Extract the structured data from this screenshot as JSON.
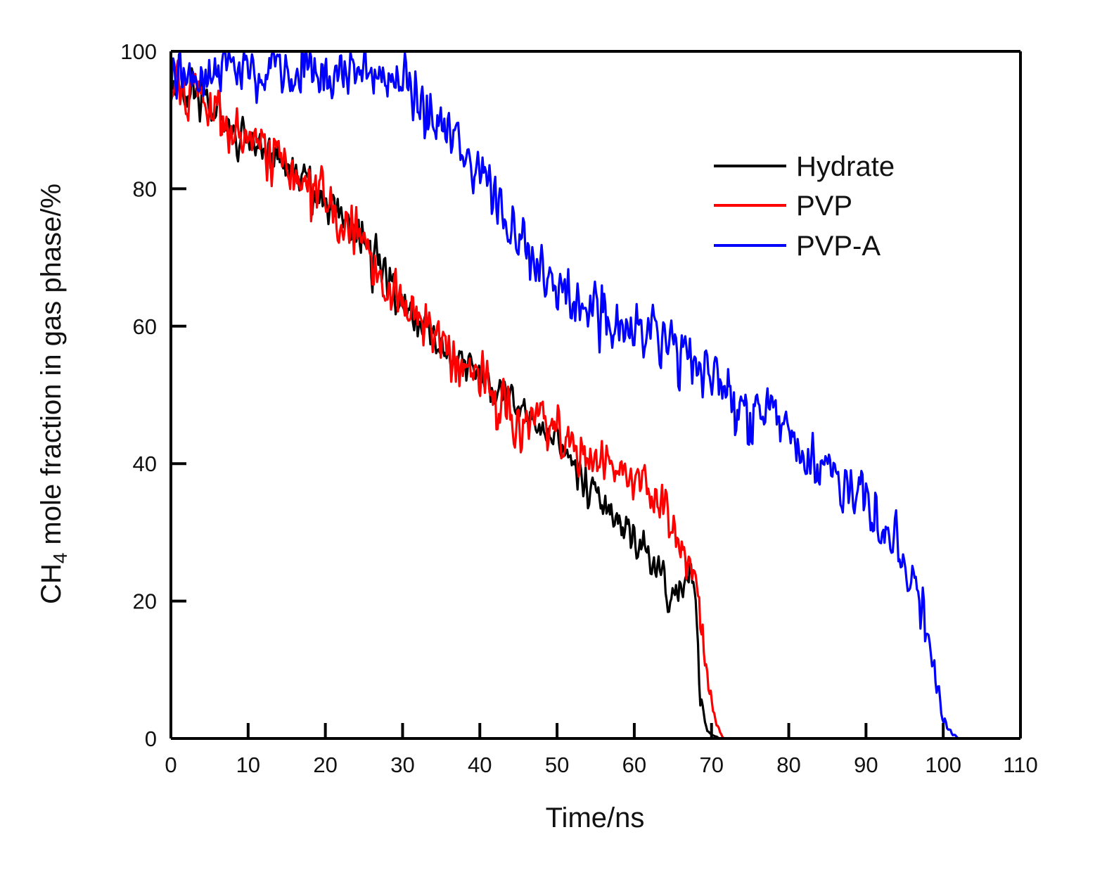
{
  "chart_data": {
    "type": "line",
    "xlabel": "Time/ns",
    "ylabel_parts": {
      "prefix": "CH",
      "subscript": "4",
      "suffix": " mole fraction in gas phase/%"
    },
    "xlim": [
      0,
      110
    ],
    "ylim": [
      0,
      100
    ],
    "xticks": [
      0,
      10,
      20,
      30,
      40,
      50,
      60,
      70,
      80,
      90,
      100,
      110
    ],
    "yticks": [
      0,
      20,
      40,
      60,
      80,
      100
    ],
    "legend_position": "top-right",
    "series": [
      {
        "name": "Hydrate",
        "color": "#000000",
        "noise": 3.5,
        "seed": 11,
        "x": [
          0,
          3,
          8,
          14,
          20,
          25,
          30,
          35,
          40,
          45,
          50,
          55,
          58,
          62,
          65,
          67.5,
          68,
          68.5,
          69.5,
          71,
          73
        ],
        "y": [
          95,
          93,
          89,
          84,
          78,
          72,
          63,
          57,
          53,
          48,
          43,
          36,
          31,
          26,
          22,
          24,
          20,
          6,
          1,
          0,
          0
        ]
      },
      {
        "name": "PVP",
        "color": "#ff0000",
        "noise": 4.5,
        "seed": 23,
        "x": [
          0,
          3,
          8,
          14,
          20,
          25,
          30,
          35,
          40,
          45,
          50,
          55,
          60,
          64,
          67,
          68,
          68.5,
          69.5,
          70.5,
          71.5,
          73
        ],
        "y": [
          96,
          94,
          88,
          84,
          79,
          72,
          63,
          57,
          53,
          45,
          45,
          41,
          38,
          33,
          26,
          24,
          18,
          8,
          3,
          0,
          0
        ]
      },
      {
        "name": "PVP-A",
        "color": "#0000ff",
        "noise": 4.5,
        "seed": 37,
        "x": [
          0,
          5,
          10,
          15,
          20,
          25,
          30,
          35,
          40,
          45,
          50,
          55,
          60,
          65,
          70,
          75,
          80,
          85,
          90,
          94,
          96,
          97.5,
          99,
          100,
          101,
          102
        ],
        "y": [
          96,
          97,
          97,
          97,
          97,
          97,
          96,
          90,
          81,
          73,
          66,
          62,
          59,
          57,
          52,
          49,
          44,
          38,
          34,
          29,
          23,
          18,
          8,
          3,
          1,
          0
        ]
      }
    ]
  }
}
